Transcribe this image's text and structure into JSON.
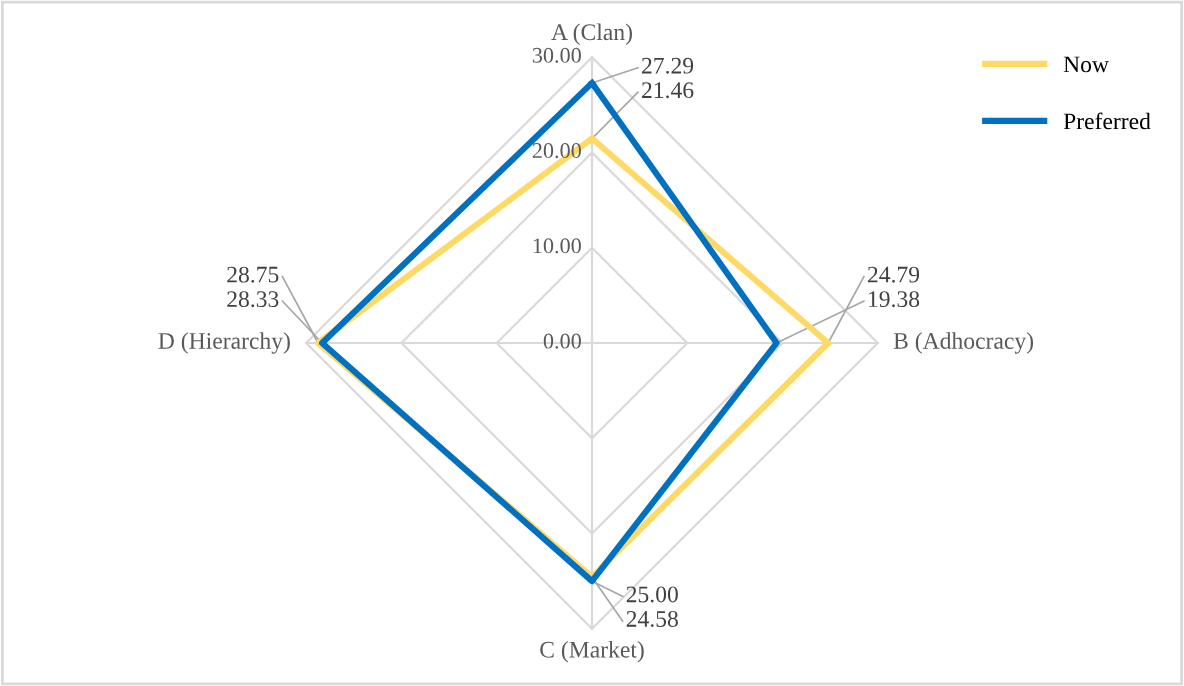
{
  "chart_data": {
    "type": "radar",
    "categories": [
      "A (Clan)",
      "B (Adhocracy)",
      "C (Market)",
      "D (Hierarchy)"
    ],
    "series": [
      {
        "name": "Now",
        "color": "#ffd966",
        "values": [
          21.46,
          24.79,
          24.58,
          28.75
        ],
        "value_labels": [
          "21.46",
          "24.79",
          "24.58",
          "28.75"
        ]
      },
      {
        "name": "Preferred",
        "color": "#0070c0",
        "values": [
          27.29,
          19.38,
          25.0,
          28.33
        ],
        "value_labels": [
          "27.29",
          "19.38",
          "25.00",
          "28.33"
        ]
      }
    ],
    "ylim": [
      0,
      30
    ],
    "yticks": [
      {
        "value": 0,
        "label": "0.00"
      },
      {
        "value": 10,
        "label": "10.00"
      },
      {
        "value": 20,
        "label": "20.00"
      },
      {
        "value": 30,
        "label": "30.00"
      }
    ],
    "grid": true,
    "legend": "top right",
    "marker": "none",
    "line_style": "solid"
  }
}
